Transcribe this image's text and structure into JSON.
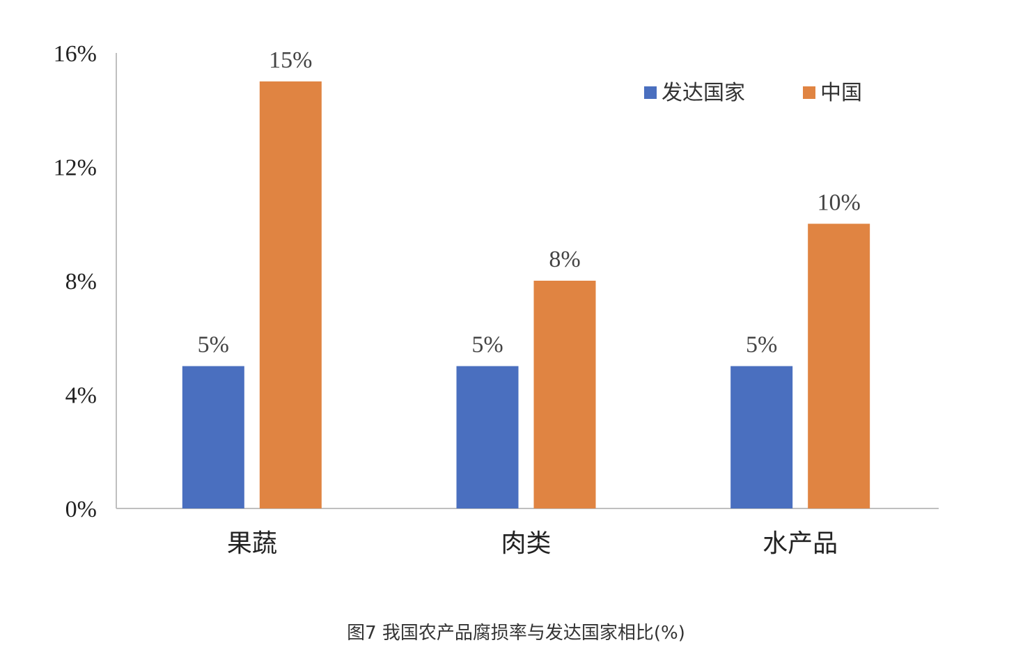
{
  "chart_data": {
    "type": "bar",
    "categories": [
      "果蔬",
      "肉类",
      "水产品"
    ],
    "series": [
      {
        "name": "发达国家",
        "color": "#4a6fbf",
        "values": [
          5,
          5,
          5
        ],
        "labels": [
          "5%",
          "5%",
          "5%"
        ]
      },
      {
        "name": "中国",
        "color": "#e08442",
        "values": [
          15,
          8,
          10
        ],
        "labels": [
          "15%",
          "8%",
          "10%"
        ]
      }
    ],
    "yticks": [
      0,
      4,
      8,
      12,
      16
    ],
    "ytick_labels": [
      "0%",
      "4%",
      "8%",
      "12%",
      "16%"
    ],
    "ylim": [
      0,
      16
    ],
    "grid": false,
    "legend_position": "top-right",
    "title": "",
    "xlabel": "",
    "ylabel": ""
  },
  "caption": "图7 我国农产品腐损率与发达国家相比(%)"
}
